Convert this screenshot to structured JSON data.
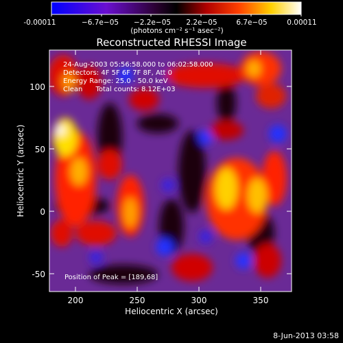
{
  "colors": {
    "background": "#000000",
    "colorbar_low": "#0000ff",
    "colorbar_mid": "#000000",
    "colorbar_high_1": "#ff0000",
    "colorbar_high_2": "#ffff00",
    "colorbar_high_3": "#ffffff",
    "map_background": "#6a2a96"
  },
  "colorbar": {
    "tick_labels": [
      "-0.00011",
      "−6.7e−05",
      "−2.2e−05",
      "2.2e−05",
      "6.7e−05",
      "0.00011"
    ],
    "units": "(photons cm⁻² s⁻¹ asec⁻²)"
  },
  "chart_data": {
    "type": "heatmap",
    "title": "Reconstructed RHESSI Image",
    "xlabel": "Heliocentric X (arcsec)",
    "ylabel": "Heliocentric Y (arcsec)",
    "xlim": [
      182,
      373
    ],
    "ylim": [
      -63,
      127
    ],
    "x_ticks": [
      200,
      250,
      300,
      350
    ],
    "y_ticks": [
      -50,
      0,
      50,
      100
    ],
    "value_range": [
      -0.00011,
      0.00011
    ],
    "annotations": [
      "24-Aug-2003 05:56:58.000 to 06:02:58.000",
      "Detectors: 4F 5F 6F 7F 8F, Att 0",
      "Energy Range: 25.0 - 50.0 keV",
      "Clean      Total counts: 8.12E+03"
    ],
    "peak_label": "Position of Peak = [189,68]",
    "peak": [
      189,
      68
    ]
  },
  "footer": {
    "date": "8-Jun-2013 03:58"
  }
}
